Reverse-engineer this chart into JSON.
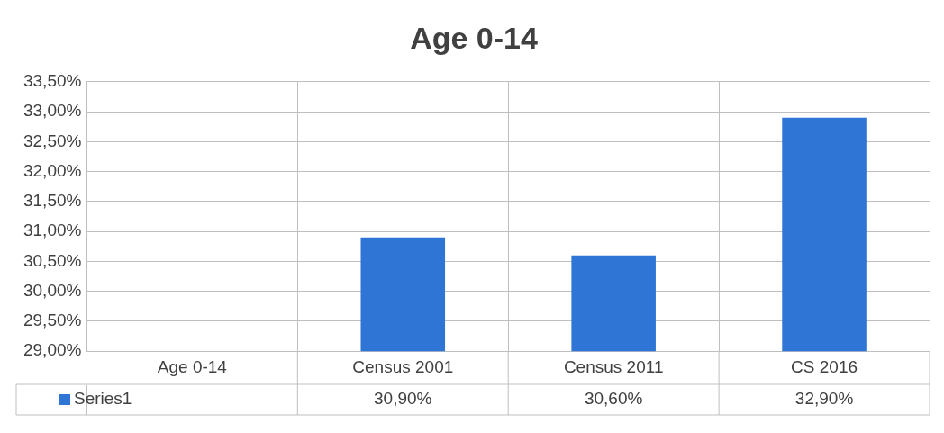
{
  "chart_data": {
    "type": "bar",
    "title": "Age 0-14",
    "categories": [
      "Age 0-14",
      "Census 2001",
      "Census 2011",
      "CS 2016"
    ],
    "series": [
      {
        "name": "Series1",
        "color": "#2e75d6",
        "values": [
          null,
          30.9,
          30.6,
          32.9
        ],
        "value_labels": [
          null,
          "30,90%",
          "30,60%",
          "32,90%"
        ]
      }
    ],
    "ylim": [
      29,
      33.5
    ],
    "yticks": [
      {
        "value": 29,
        "label": "29,00%"
      },
      {
        "value": 29.5,
        "label": "29,50%"
      },
      {
        "value": 30,
        "label": "30,00%"
      },
      {
        "value": 30.5,
        "label": "30,50%"
      },
      {
        "value": 31,
        "label": "31,00%"
      },
      {
        "value": 31.5,
        "label": "31,50%"
      },
      {
        "value": 32,
        "label": "32,00%"
      },
      {
        "value": 32.5,
        "label": "32,50%"
      },
      {
        "value": 33,
        "label": "33,00%"
      },
      {
        "value": 33.5,
        "label": "33,50%"
      }
    ],
    "grid": true,
    "legend": "bottom left"
  }
}
